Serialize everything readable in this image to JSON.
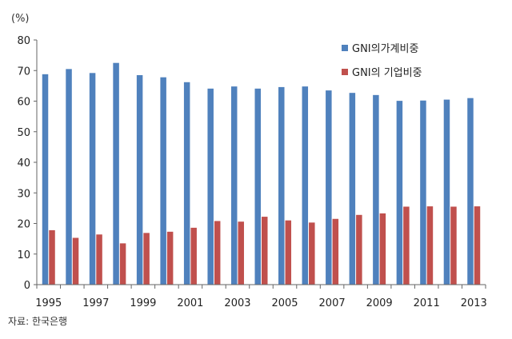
{
  "chart_data": {
    "type": "bar",
    "unit_label": "(%)",
    "categories": [
      "1995",
      "1996",
      "1997",
      "1998",
      "1999",
      "2000",
      "2001",
      "2002",
      "2003",
      "2004",
      "2005",
      "2006",
      "2007",
      "2008",
      "2009",
      "2010",
      "2011",
      "2012",
      "2013"
    ],
    "x_tick_labels": [
      "1995",
      "1997",
      "1999",
      "2001",
      "2003",
      "2005",
      "2007",
      "2009",
      "2011",
      "2013"
    ],
    "series": [
      {
        "name": "GNI의가계비중",
        "color": "#4f81bd",
        "values": [
          68.8,
          70.5,
          69.2,
          72.5,
          68.5,
          67.8,
          66.2,
          64.1,
          64.8,
          64.1,
          64.6,
          64.8,
          63.5,
          62.7,
          62.0,
          60.1,
          60.2,
          60.5,
          61.0
        ]
      },
      {
        "name": "GNI의 기업비중",
        "color": "#c0504d",
        "values": [
          17.8,
          15.3,
          16.4,
          13.5,
          16.9,
          17.3,
          18.6,
          20.8,
          20.6,
          22.2,
          21.0,
          20.3,
          21.5,
          22.8,
          23.3,
          25.5,
          25.6,
          25.5,
          25.6
        ]
      }
    ],
    "ylim": [
      0,
      80
    ],
    "y_ticks": [
      0,
      10,
      20,
      30,
      40,
      50,
      60,
      70,
      80
    ],
    "legend_position": "top-right",
    "grid": false
  },
  "source_note": "자료: 한국은행"
}
